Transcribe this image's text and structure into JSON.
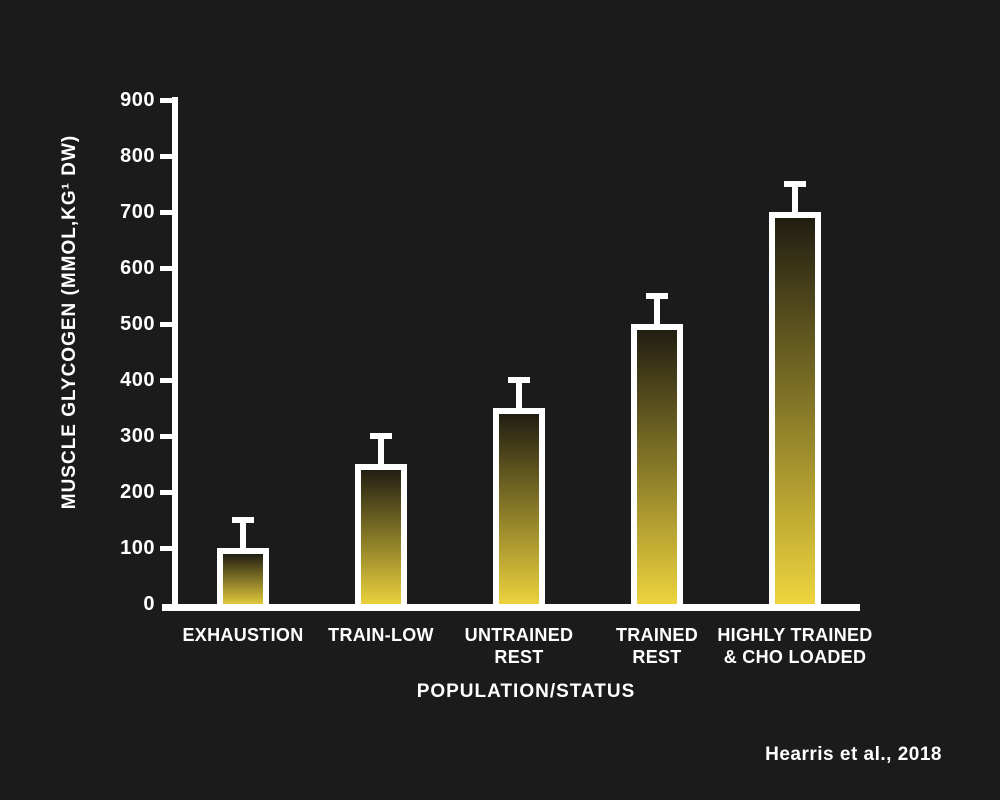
{
  "background": "#1c1b1b",
  "text_color": "#ffffff",
  "citation": "Hearris et al., 2018",
  "chart_data": {
    "type": "bar",
    "title": "",
    "xlabel": "POPULATION/STATUS",
    "ylabel": "MUSCLE GLYCOGEN (MMOL,KG¹ DW)",
    "categories": [
      [
        "EXHAUSTION"
      ],
      [
        "TRAIN-LOW"
      ],
      [
        "UNTRAINED",
        "REST"
      ],
      [
        "TRAINED",
        "REST"
      ],
      [
        "HIGHLY TRAINED",
        "& CHO LOADED"
      ]
    ],
    "values": [
      100,
      250,
      350,
      500,
      700
    ],
    "errors": [
      50,
      50,
      50,
      50,
      50
    ],
    "ylim": [
      0,
      900
    ],
    "yticks": [
      0,
      100,
      200,
      300,
      400,
      500,
      600,
      700,
      800,
      900
    ],
    "grid": false,
    "legend": null,
    "axis_color": "#ffffff",
    "bar_border_color": "#ffffff",
    "error_bar_color": "#ffffff",
    "bar_gradient_top": "#211e12",
    "bar_gradient_bottom": "#f0d63e"
  }
}
